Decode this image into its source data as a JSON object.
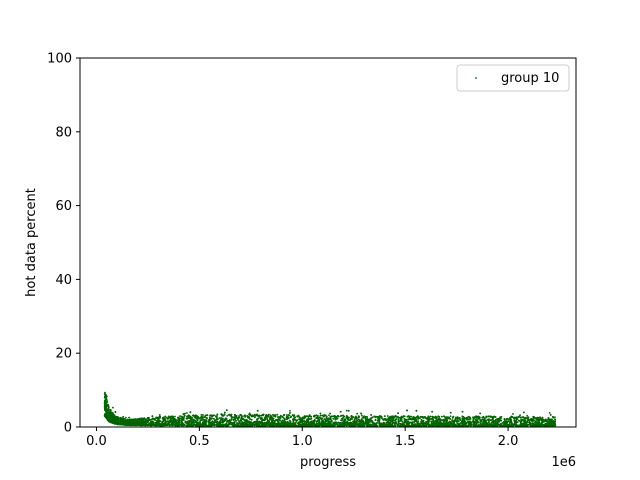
{
  "chart_data": {
    "type": "scatter",
    "title": "",
    "xlabel": "progress",
    "ylabel": "hot data percent",
    "x_offset_label": "1e6",
    "xlim": [
      -80000,
      2330000
    ],
    "ylim": [
      0,
      100
    ],
    "x_ticks": [
      0,
      500000,
      1000000,
      1500000,
      2000000
    ],
    "x_tick_labels": [
      "0.0",
      "0.5",
      "1.0",
      "1.5",
      "2.0"
    ],
    "y_ticks": [
      0,
      20,
      40,
      60,
      80,
      100
    ],
    "y_tick_labels": [
      "0",
      "20",
      "40",
      "60",
      "80",
      "100"
    ],
    "grid": false,
    "legend_position": "top-right",
    "series": [
      {
        "name": "group 10",
        "color": "#006400",
        "marker": "dot",
        "x_range": [
          40000,
          2230000
        ],
        "profile": [
          {
            "x": 40000,
            "y_low": 3.0,
            "y_high": 9.5
          },
          {
            "x": 60000,
            "y_low": 1.5,
            "y_high": 5.5
          },
          {
            "x": 90000,
            "y_low": 0.8,
            "y_high": 3.0
          },
          {
            "x": 150000,
            "y_low": 0.5,
            "y_high": 2.0
          },
          {
            "x": 300000,
            "y_low": 0.4,
            "y_high": 2.8
          },
          {
            "x": 600000,
            "y_low": 0.3,
            "y_high": 3.5
          },
          {
            "x": 1000000,
            "y_low": 0.3,
            "y_high": 3.3
          },
          {
            "x": 1500000,
            "y_low": 0.3,
            "y_high": 3.0
          },
          {
            "x": 2230000,
            "y_low": 0.3,
            "y_high": 2.8
          }
        ]
      }
    ]
  }
}
